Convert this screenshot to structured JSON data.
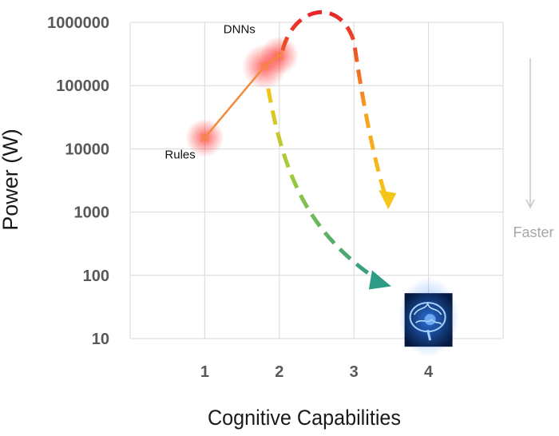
{
  "chart_data": {
    "type": "line",
    "title": "",
    "xlabel": "Cognitive Capabilities",
    "ylabel": "Power (W)",
    "x_ticks": [
      "1",
      "2",
      "3",
      "4"
    ],
    "y_ticks": [
      "10",
      "100",
      "1000",
      "10000",
      "100000",
      "1000000"
    ],
    "xlim": [
      0,
      5
    ],
    "ylim": [
      10,
      1000000
    ],
    "y_scale": "log",
    "grid": true,
    "series": [
      {
        "points": [
          {
            "x": 1,
            "y": 15000
          },
          {
            "x": 1.8,
            "y": 200000
          },
          {
            "x": 2,
            "y": 300000
          }
        ],
        "color": "#f28a3c"
      }
    ],
    "annotations": [
      {
        "text": "Rules",
        "x": 1,
        "y": 15000
      },
      {
        "text": "DNNs",
        "x": 2,
        "y": 300000
      }
    ],
    "side_label": "Faster",
    "arrows": [
      {
        "from": {
          "x": 2,
          "y": 300000
        },
        "peak": {
          "x": 2.7,
          "y": 1700000
        },
        "to": {
          "x": 3.45,
          "y": 1400
        },
        "colors": [
          "#e8202b",
          "#f7a21d",
          "#f5c518"
        ]
      },
      {
        "from": {
          "x": 1.85,
          "y": 90000
        },
        "to": {
          "x": 3.35,
          "y": 80
        },
        "colors": [
          "#f5c518",
          "#9ccc3c",
          "#2e9c84"
        ]
      }
    ],
    "image_icon": "brain-icon",
    "image_at": {
      "x": 4,
      "y": 20
    },
    "colors": {
      "grid": "#d9d9d9",
      "tick": "#595959",
      "faster": "#a6a6a6"
    }
  }
}
